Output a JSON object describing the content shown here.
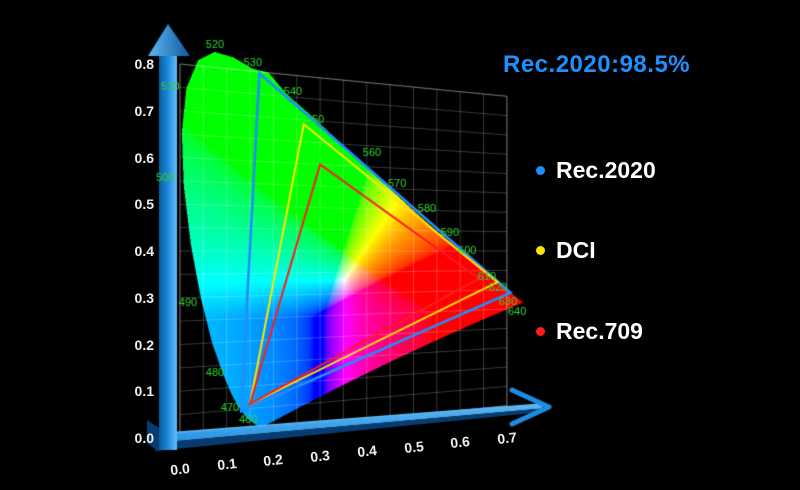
{
  "title": {
    "text": "Rec.2020:98.5%",
    "color": "#1e90ff"
  },
  "legend": {
    "items": [
      {
        "label": "Rec.2020",
        "color": "#1e8fff"
      },
      {
        "label": "DCI",
        "color": "#ffe400"
      },
      {
        "label": "Rec.709",
        "color": "#ff1c1c"
      }
    ]
  },
  "chart_data": {
    "type": "chromaticity-diagram",
    "title": "Rec.2020:98.5%",
    "coverage_value": "98.5%",
    "x_ticks": [
      "0.0",
      "0.1",
      "0.2",
      "0.3",
      "0.4",
      "0.5",
      "0.6",
      "0.7"
    ],
    "y_ticks": [
      "0.0",
      "0.1",
      "0.2",
      "0.3",
      "0.4",
      "0.5",
      "0.6",
      "0.7",
      "0.8"
    ],
    "x_range": [
      0,
      0.7
    ],
    "y_range": [
      0,
      0.8
    ],
    "grid_step": 0.05,
    "grid_on": true,
    "grid_color": "rgba(255,255,255,0.22)",
    "grid_border_color": "rgba(255,255,255,0.30)",
    "axis_color_light": "#5fb9f4",
    "axis_color_main": "#1e8ce0",
    "axis_color_dark": "#0d5a9e",
    "axis_color_side": "#083c70",
    "label_color": "#2fd32f",
    "white_center": [
      0.366,
      0.332
    ],
    "legend_position": "right",
    "locus": [
      [
        380,
        0.1741,
        0.005
      ],
      [
        390,
        0.1738,
        0.0049
      ],
      [
        400,
        0.1733,
        0.0048
      ],
      [
        410,
        0.1726,
        0.0048
      ],
      [
        420,
        0.1714,
        0.0051
      ],
      [
        430,
        0.1689,
        0.0069
      ],
      [
        440,
        0.1644,
        0.0109
      ],
      [
        445,
        0.1611,
        0.0138
      ],
      [
        450,
        0.1566,
        0.0177
      ],
      [
        455,
        0.151,
        0.0227
      ],
      [
        460,
        0.144,
        0.0297
      ],
      [
        465,
        0.1355,
        0.0399
      ],
      [
        470,
        0.1241,
        0.0578
      ],
      [
        475,
        0.1096,
        0.0868
      ],
      [
        480,
        0.0913,
        0.1327
      ],
      [
        485,
        0.0687,
        0.2007
      ],
      [
        490,
        0.0454,
        0.295
      ],
      [
        495,
        0.0235,
        0.4127
      ],
      [
        500,
        0.0082,
        0.5384
      ],
      [
        505,
        0.0039,
        0.6548
      ],
      [
        510,
        0.0139,
        0.7502
      ],
      [
        515,
        0.0389,
        0.812
      ],
      [
        520,
        0.0743,
        0.8338
      ],
      [
        525,
        0.1142,
        0.8262
      ],
      [
        530,
        0.1547,
        0.8059
      ],
      [
        535,
        0.1896,
        0.8003
      ],
      [
        540,
        0.2296,
        0.7543
      ],
      [
        545,
        0.2658,
        0.7243
      ],
      [
        550,
        0.3016,
        0.6923
      ],
      [
        555,
        0.3373,
        0.6588
      ],
      [
        560,
        0.3731,
        0.6245
      ],
      [
        565,
        0.4087,
        0.5896
      ],
      [
        570,
        0.4441,
        0.5547
      ],
      [
        575,
        0.4788,
        0.5202
      ],
      [
        580,
        0.5125,
        0.4866
      ],
      [
        585,
        0.5448,
        0.4544
      ],
      [
        590,
        0.5752,
        0.4242
      ],
      [
        595,
        0.6029,
        0.3965
      ],
      [
        600,
        0.627,
        0.3725
      ],
      [
        605,
        0.6482,
        0.3514
      ],
      [
        610,
        0.6658,
        0.334
      ],
      [
        615,
        0.6801,
        0.3197
      ],
      [
        620,
        0.6915,
        0.3083
      ],
      [
        625,
        0.7006,
        0.2993
      ],
      [
        630,
        0.7079,
        0.292
      ],
      [
        635,
        0.714,
        0.2859
      ],
      [
        640,
        0.719,
        0.2809
      ],
      [
        645,
        0.723,
        0.277
      ],
      [
        650,
        0.726,
        0.274
      ],
      [
        660,
        0.73,
        0.27
      ],
      [
        670,
        0.732,
        0.268
      ],
      [
        680,
        0.7334,
        0.2666
      ],
      [
        690,
        0.7344,
        0.2656
      ],
      [
        700,
        0.7347,
        0.2653
      ]
    ],
    "locus_labels": [
      {
        "text": "460",
        "x": 0.146,
        "y": 0.025
      },
      {
        "text": "470",
        "x": 0.107,
        "y": 0.055
      },
      {
        "text": "480",
        "x": 0.075,
        "y": 0.134
      },
      {
        "text": "490",
        "x": 0.017,
        "y": 0.288
      },
      {
        "text": "500",
        "x": -0.032,
        "y": 0.555
      },
      {
        "text": "510",
        "x": -0.021,
        "y": 0.749
      },
      {
        "text": "520",
        "x": 0.075,
        "y": 0.849
      },
      {
        "text": "530",
        "x": 0.156,
        "y": 0.818
      },
      {
        "text": "540",
        "x": 0.242,
        "y": 0.762
      },
      {
        "text": "550",
        "x": 0.289,
        "y": 0.702
      },
      {
        "text": "560",
        "x": 0.411,
        "y": 0.633
      },
      {
        "text": "570",
        "x": 0.465,
        "y": 0.562
      },
      {
        "text": "580",
        "x": 0.529,
        "y": 0.503
      },
      {
        "text": "590",
        "x": 0.578,
        "y": 0.445
      },
      {
        "text": "600",
        "x": 0.615,
        "y": 0.4
      },
      {
        "text": "610",
        "x": 0.657,
        "y": 0.334
      },
      {
        "text": "620",
        "x": 0.681,
        "y": 0.305
      },
      {
        "text": "630",
        "x": 0.702,
        "y": 0.268
      },
      {
        "text": "640",
        "x": 0.722,
        "y": 0.241
      }
    ],
    "gamuts": [
      {
        "name": "Rec.2020",
        "color": "#1e8fff",
        "line_width": 2.6,
        "points": [
          [
            0.708,
            0.292
          ],
          [
            0.17,
            0.797
          ],
          [
            0.131,
            0.046
          ]
        ]
      },
      {
        "name": "DCI",
        "color": "#ffe400",
        "line_width": 2.0,
        "points": [
          [
            0.68,
            0.32
          ],
          [
            0.265,
            0.69
          ],
          [
            0.15,
            0.06
          ]
        ]
      },
      {
        "name": "Rec.709",
        "color": "#ff1c1c",
        "line_width": 2.0,
        "points": [
          [
            0.64,
            0.33
          ],
          [
            0.3,
            0.6
          ],
          [
            0.15,
            0.06
          ]
        ]
      }
    ]
  }
}
